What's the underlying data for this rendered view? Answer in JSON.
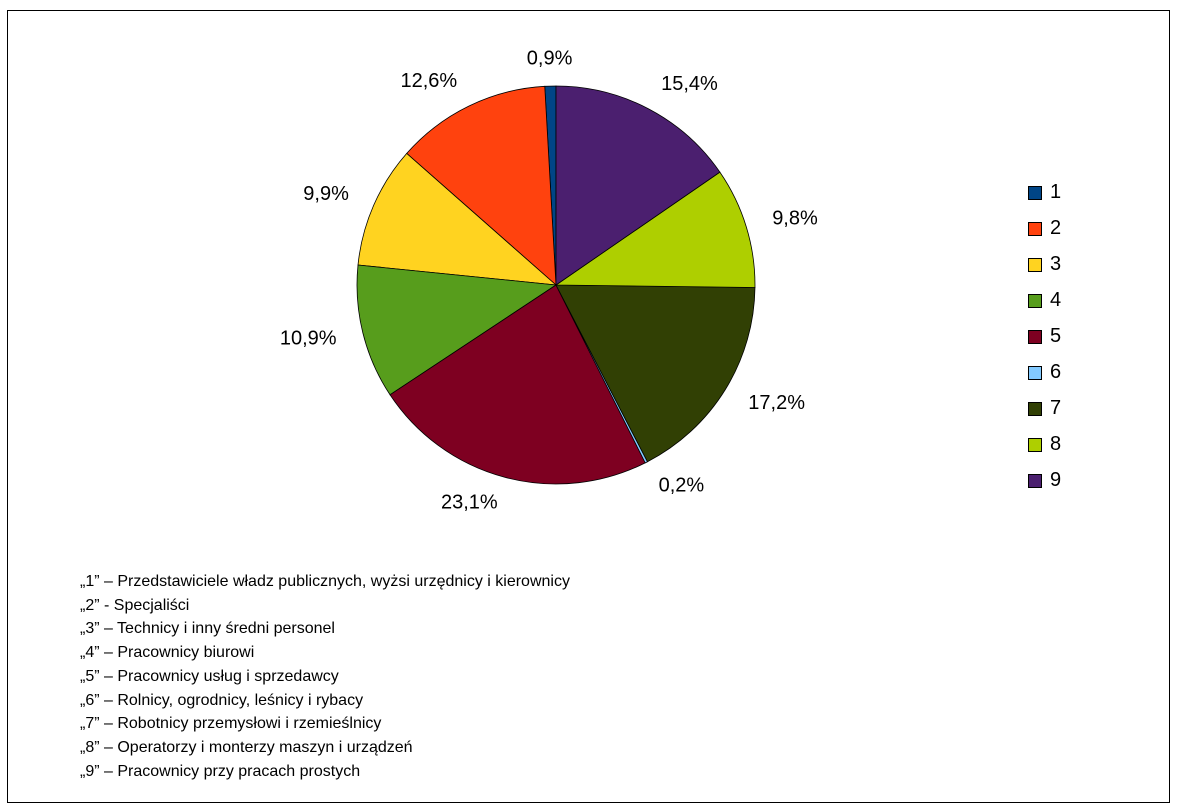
{
  "chart_data": {
    "type": "pie",
    "slices": [
      {
        "label": "1",
        "value": 0.9,
        "value_label": "0,9%",
        "color": "#004586"
      },
      {
        "label": "2",
        "value": 12.6,
        "value_label": "12,6%",
        "color": "#ff420e"
      },
      {
        "label": "3",
        "value": 9.9,
        "value_label": "9,9%",
        "color": "#ffd320"
      },
      {
        "label": "4",
        "value": 10.9,
        "value_label": "10,9%",
        "color": "#579d1c"
      },
      {
        "label": "5",
        "value": 23.1,
        "value_label": "23,1%",
        "color": "#7e0021"
      },
      {
        "label": "6",
        "value": 0.2,
        "value_label": "0,2%",
        "color": "#83caff"
      },
      {
        "label": "7",
        "value": 17.2,
        "value_label": "17,2%",
        "color": "#314004"
      },
      {
        "label": "8",
        "value": 9.8,
        "value_label": "9,8%",
        "color": "#aecf00"
      },
      {
        "label": "9",
        "value": 15.4,
        "value_label": "15,4%",
        "color": "#4b1f6f"
      }
    ],
    "legend_position": "right",
    "start_angle": "top",
    "direction": "counter-clockwise"
  },
  "notes": [
    "„1” – Przedstawiciele władz publicznych, wyżsi urzędnicy i kierownicy",
    "„2” - Specjaliści",
    "„3” – Technicy i inny średni personel",
    "„4” – Pracownicy biurowi",
    "„5” – Pracownicy usług i sprzedawcy",
    "„6” – Rolnicy, ogrodnicy, leśnicy i rybacy",
    "„7” – Robotnicy przemysłowi i rzemieślnicy",
    "„8” – Operatorzy i monterzy maszyn i urządzeń",
    "„9” – Pracownicy przy pracach prostych"
  ]
}
